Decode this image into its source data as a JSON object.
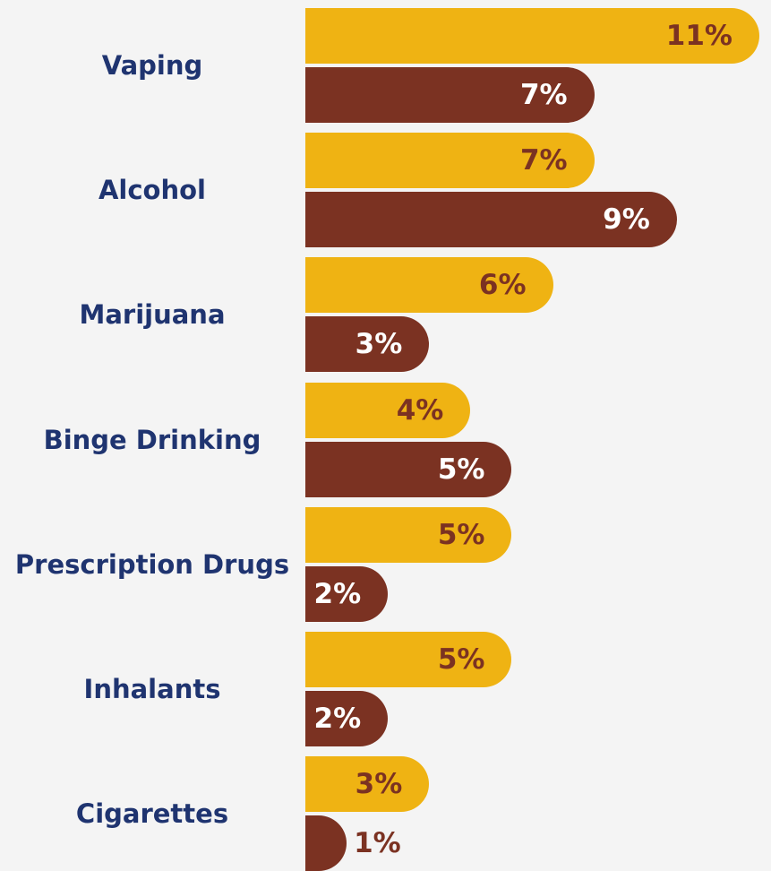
{
  "colors": {
    "background": "#f4f4f4",
    "category_text": "#1f3470",
    "series_a_fill": "#efb313",
    "series_a_text": "#7b3222",
    "series_b_fill": "#7b3222",
    "series_b_text": "#ffffff"
  },
  "chart_data": {
    "type": "bar",
    "orientation": "horizontal",
    "categories": [
      "Vaping",
      "Alcohol",
      "Marijuana",
      "Binge Drinking",
      "Prescription Drugs",
      "Inhalants",
      "Cigarettes"
    ],
    "series": [
      {
        "values": [
          11,
          7,
          6,
          4,
          5,
          5,
          3
        ],
        "labels": [
          "11%",
          "7%",
          "6%",
          "4%",
          "5%",
          "5%",
          "3%"
        ],
        "color": "#efb313"
      },
      {
        "values": [
          7,
          9,
          3,
          5,
          2,
          2,
          1
        ],
        "labels": [
          "7%",
          "9%",
          "3%",
          "5%",
          "2%",
          "2%",
          "1%"
        ],
        "color": "#7b3222"
      }
    ],
    "title": "",
    "xlabel": "",
    "ylabel": "",
    "xlim": [
      0,
      11
    ],
    "grid": false,
    "legend": "none"
  }
}
